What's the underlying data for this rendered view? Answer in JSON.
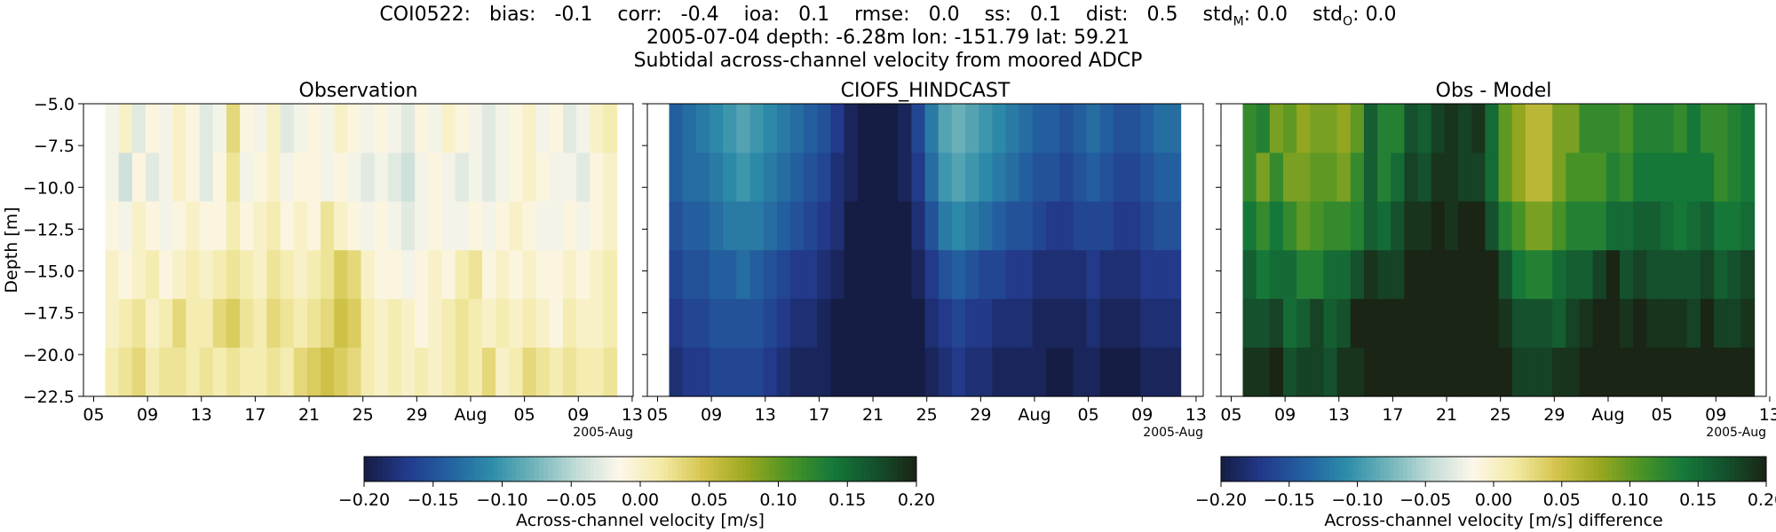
{
  "header": {
    "station": "COI0522:",
    "stats": [
      {
        "label": "bias:",
        "value": "-0.1"
      },
      {
        "label": "corr:",
        "value": "-0.4"
      },
      {
        "label": "ioa:",
        "value": "0.1"
      },
      {
        "label": "rmse:",
        "value": "0.0"
      },
      {
        "label": "ss:",
        "value": "0.1"
      },
      {
        "label": "dist:",
        "value": "0.5"
      }
    ],
    "std_model": {
      "label": "std",
      "sub": "M",
      "value": "0.0"
    },
    "std_obs": {
      "label": "std",
      "sub": "O",
      "value": "0.0"
    },
    "line2": "2005-07-04 depth: -6.28m lon: -151.79 lat: 59.21",
    "line3": "Subtidal across-channel velocity from moored ADCP"
  },
  "chart_data": [
    {
      "type": "heatmap",
      "title": "Observation",
      "ylabel": "Depth [m]",
      "x_tick_labels": [
        "05",
        "09",
        "13",
        "17",
        "21",
        "25",
        "29",
        "Aug",
        "05",
        "09",
        "13"
      ],
      "x_offset_label": "2005-Aug",
      "y_tick_labels": [
        "-5.0",
        "-7.5",
        "-10.0",
        "-12.5",
        "-15.0",
        "-17.5",
        "-20.0",
        "-22.5"
      ],
      "ylim": [
        -22.5,
        -5.0
      ],
      "depth_bins": [
        -6.28,
        -9.28,
        -12.28,
        -15.28,
        -18.28,
        -21.28
      ],
      "time_start": "2005-07-06",
      "n_days": 38,
      "value_range": [
        -0.2,
        0.2
      ],
      "colormap": "curl",
      "values_by_depth": [
        [
          -0.02,
          0.0,
          -0.03,
          -0.01,
          -0.02,
          0.0,
          -0.01,
          -0.03,
          -0.02,
          0.03,
          -0.01,
          -0.02,
          0.0,
          -0.03,
          -0.02,
          -0.01,
          -0.02,
          0.0,
          -0.01,
          -0.02,
          -0.01,
          -0.02,
          -0.03,
          -0.01,
          -0.02,
          0.0,
          -0.01,
          -0.02,
          -0.03,
          -0.02,
          -0.01,
          0.0,
          -0.02,
          -0.01,
          -0.03,
          -0.02,
          0.0,
          0.01
        ],
        [
          -0.02,
          -0.04,
          -0.01,
          -0.03,
          -0.02,
          0.0,
          -0.01,
          -0.03,
          -0.01,
          0.02,
          -0.02,
          -0.01,
          0.0,
          -0.02,
          -0.01,
          -0.01,
          -0.02,
          -0.01,
          -0.02,
          -0.03,
          -0.02,
          -0.03,
          -0.04,
          -0.02,
          -0.01,
          -0.02,
          -0.03,
          -0.02,
          -0.03,
          -0.02,
          -0.01,
          0.0,
          -0.01,
          -0.02,
          -0.02,
          -0.03,
          -0.01,
          0.0
        ],
        [
          -0.01,
          -0.02,
          0.0,
          -0.01,
          -0.02,
          -0.01,
          0.0,
          -0.01,
          -0.01,
          0.01,
          -0.01,
          0.0,
          0.01,
          -0.01,
          0.0,
          -0.01,
          0.02,
          0.0,
          -0.01,
          -0.02,
          -0.01,
          -0.02,
          -0.03,
          -0.02,
          -0.01,
          -0.02,
          -0.02,
          -0.01,
          -0.02,
          -0.01,
          0.0,
          -0.01,
          -0.02,
          -0.02,
          -0.01,
          -0.02,
          -0.01,
          0.0
        ],
        [
          0.0,
          -0.01,
          0.0,
          0.01,
          -0.01,
          0.0,
          0.01,
          0.0,
          0.01,
          0.02,
          0.01,
          0.0,
          0.02,
          0.01,
          0.0,
          0.01,
          0.02,
          0.04,
          0.03,
          0.0,
          -0.01,
          -0.01,
          -0.02,
          -0.01,
          0.0,
          -0.01,
          0.01,
          0.02,
          -0.01,
          0.0,
          -0.01,
          0.0,
          -0.01,
          -0.01,
          0.0,
          -0.01,
          0.0,
          0.01
        ],
        [
          0.0,
          0.01,
          0.02,
          0.0,
          0.01,
          0.03,
          0.01,
          0.01,
          0.03,
          0.04,
          0.02,
          0.01,
          0.03,
          0.02,
          0.01,
          0.02,
          0.03,
          0.05,
          0.04,
          0.01,
          0.0,
          0.01,
          0.0,
          -0.01,
          0.0,
          0.01,
          0.02,
          0.01,
          0.0,
          0.01,
          0.0,
          0.01,
          0.0,
          -0.01,
          0.01,
          0.0,
          0.0,
          0.01
        ],
        [
          0.01,
          0.02,
          0.03,
          0.01,
          0.02,
          0.02,
          0.01,
          0.02,
          0.01,
          0.02,
          0.01,
          0.01,
          0.02,
          0.01,
          0.03,
          0.04,
          0.05,
          0.04,
          0.03,
          0.01,
          0.0,
          0.01,
          0.0,
          0.01,
          0.0,
          0.01,
          0.02,
          0.01,
          0.03,
          0.0,
          0.01,
          0.03,
          0.02,
          0.01,
          0.02,
          0.01,
          0.01,
          0.02
        ]
      ]
    },
    {
      "type": "heatmap",
      "title": "CIOFS_HINDCAST",
      "x_tick_labels": [
        "05",
        "09",
        "13",
        "17",
        "21",
        "25",
        "29",
        "Aug",
        "05",
        "09",
        "13"
      ],
      "x_offset_label": "2005-Aug",
      "ylim": [
        -22.5,
        -5.0
      ],
      "depth_bins": [
        -6.28,
        -9.28,
        -12.28,
        -15.28,
        -18.28,
        -21.28
      ],
      "time_start": "2005-07-06",
      "n_days": 38,
      "value_range": [
        -0.2,
        0.2
      ],
      "colormap": "curl",
      "values_by_depth": [
        [
          -0.14,
          -0.13,
          -0.12,
          -0.11,
          -0.1,
          -0.09,
          -0.1,
          -0.11,
          -0.12,
          -0.13,
          -0.14,
          -0.15,
          -0.17,
          -0.19,
          -0.2,
          -0.2,
          -0.2,
          -0.19,
          -0.16,
          -0.12,
          -0.09,
          -0.08,
          -0.09,
          -0.1,
          -0.11,
          -0.12,
          -0.13,
          -0.14,
          -0.14,
          -0.15,
          -0.14,
          -0.13,
          -0.14,
          -0.15,
          -0.15,
          -0.14,
          -0.13,
          -0.13
        ],
        [
          -0.14,
          -0.13,
          -0.13,
          -0.12,
          -0.11,
          -0.1,
          -0.11,
          -0.12,
          -0.13,
          -0.14,
          -0.15,
          -0.16,
          -0.18,
          -0.19,
          -0.2,
          -0.2,
          -0.2,
          -0.19,
          -0.17,
          -0.13,
          -0.1,
          -0.09,
          -0.1,
          -0.11,
          -0.12,
          -0.13,
          -0.14,
          -0.15,
          -0.15,
          -0.16,
          -0.15,
          -0.14,
          -0.15,
          -0.16,
          -0.16,
          -0.15,
          -0.14,
          -0.14
        ],
        [
          -0.15,
          -0.14,
          -0.14,
          -0.13,
          -0.12,
          -0.12,
          -0.12,
          -0.13,
          -0.14,
          -0.15,
          -0.16,
          -0.17,
          -0.18,
          -0.2,
          -0.2,
          -0.2,
          -0.2,
          -0.2,
          -0.18,
          -0.15,
          -0.12,
          -0.11,
          -0.12,
          -0.13,
          -0.14,
          -0.15,
          -0.15,
          -0.16,
          -0.17,
          -0.17,
          -0.16,
          -0.16,
          -0.16,
          -0.17,
          -0.17,
          -0.16,
          -0.15,
          -0.15
        ],
        [
          -0.16,
          -0.15,
          -0.15,
          -0.14,
          -0.14,
          -0.13,
          -0.14,
          -0.15,
          -0.16,
          -0.17,
          -0.17,
          -0.18,
          -0.19,
          -0.2,
          -0.2,
          -0.2,
          -0.2,
          -0.2,
          -0.19,
          -0.17,
          -0.15,
          -0.14,
          -0.15,
          -0.16,
          -0.16,
          -0.17,
          -0.17,
          -0.18,
          -0.18,
          -0.18,
          -0.18,
          -0.17,
          -0.18,
          -0.18,
          -0.18,
          -0.17,
          -0.17,
          -0.17
        ],
        [
          -0.17,
          -0.16,
          -0.16,
          -0.15,
          -0.15,
          -0.15,
          -0.15,
          -0.16,
          -0.17,
          -0.18,
          -0.18,
          -0.19,
          -0.2,
          -0.2,
          -0.2,
          -0.2,
          -0.2,
          -0.2,
          -0.2,
          -0.18,
          -0.17,
          -0.16,
          -0.17,
          -0.17,
          -0.18,
          -0.18,
          -0.18,
          -0.19,
          -0.19,
          -0.19,
          -0.19,
          -0.18,
          -0.19,
          -0.19,
          -0.19,
          -0.18,
          -0.18,
          -0.18
        ],
        [
          -0.18,
          -0.17,
          -0.17,
          -0.16,
          -0.16,
          -0.16,
          -0.16,
          -0.17,
          -0.18,
          -0.19,
          -0.19,
          -0.19,
          -0.2,
          -0.2,
          -0.2,
          -0.2,
          -0.2,
          -0.2,
          -0.2,
          -0.19,
          -0.18,
          -0.17,
          -0.18,
          -0.18,
          -0.19,
          -0.19,
          -0.19,
          -0.19,
          -0.2,
          -0.2,
          -0.19,
          -0.19,
          -0.2,
          -0.2,
          -0.2,
          -0.19,
          -0.19,
          -0.19
        ]
      ]
    },
    {
      "type": "heatmap",
      "title": "Obs - Model",
      "x_tick_labels": [
        "05",
        "09",
        "13",
        "17",
        "21",
        "25",
        "29",
        "Aug",
        "05",
        "09",
        "13"
      ],
      "x_offset_label": "2005-Aug",
      "ylim": [
        -22.5,
        -5.0
      ],
      "depth_bins": [
        -6.28,
        -9.28,
        -12.28,
        -15.28,
        -18.28,
        -21.28
      ],
      "time_start": "2005-07-06",
      "n_days": 38,
      "value_range": [
        -0.2,
        0.2
      ],
      "colormap": "curl",
      "values_by_depth": [
        [
          0.12,
          0.13,
          0.09,
          0.1,
          0.08,
          0.09,
          0.09,
          0.08,
          0.1,
          0.16,
          0.13,
          0.13,
          0.17,
          0.16,
          0.18,
          0.19,
          0.18,
          0.19,
          0.15,
          0.1,
          0.08,
          0.06,
          0.06,
          0.09,
          0.09,
          0.12,
          0.12,
          0.12,
          0.11,
          0.13,
          0.13,
          0.13,
          0.12,
          0.14,
          0.12,
          0.12,
          0.13,
          0.14
        ],
        [
          0.12,
          0.09,
          0.12,
          0.09,
          0.09,
          0.1,
          0.1,
          0.09,
          0.12,
          0.16,
          0.13,
          0.15,
          0.18,
          0.17,
          0.19,
          0.19,
          0.18,
          0.18,
          0.15,
          0.1,
          0.08,
          0.06,
          0.06,
          0.09,
          0.11,
          0.11,
          0.11,
          0.13,
          0.12,
          0.14,
          0.14,
          0.14,
          0.14,
          0.14,
          0.14,
          0.12,
          0.13,
          0.14
        ],
        [
          0.14,
          0.12,
          0.14,
          0.12,
          0.1,
          0.11,
          0.12,
          0.12,
          0.13,
          0.16,
          0.15,
          0.17,
          0.19,
          0.19,
          0.2,
          0.19,
          0.22,
          0.2,
          0.17,
          0.13,
          0.11,
          0.09,
          0.09,
          0.11,
          0.13,
          0.13,
          0.13,
          0.15,
          0.15,
          0.16,
          0.16,
          0.15,
          0.14,
          0.15,
          0.16,
          0.14,
          0.14,
          0.15
        ],
        [
          0.16,
          0.14,
          0.15,
          0.15,
          0.13,
          0.13,
          0.15,
          0.15,
          0.17,
          0.19,
          0.18,
          0.18,
          0.21,
          0.21,
          0.2,
          0.21,
          0.22,
          0.24,
          0.22,
          0.17,
          0.14,
          0.13,
          0.13,
          0.15,
          0.16,
          0.16,
          0.18,
          0.2,
          0.17,
          0.18,
          0.17,
          0.17,
          0.17,
          0.17,
          0.18,
          0.16,
          0.17,
          0.18
        ],
        [
          0.17,
          0.17,
          0.18,
          0.15,
          0.16,
          0.18,
          0.16,
          0.17,
          0.2,
          0.22,
          0.2,
          0.2,
          0.23,
          0.22,
          0.21,
          0.22,
          0.23,
          0.25,
          0.24,
          0.19,
          0.17,
          0.17,
          0.17,
          0.16,
          0.18,
          0.19,
          0.2,
          0.2,
          0.19,
          0.2,
          0.19,
          0.19,
          0.19,
          0.18,
          0.2,
          0.18,
          0.18,
          0.19
        ],
        [
          0.19,
          0.19,
          0.2,
          0.17,
          0.18,
          0.18,
          0.17,
          0.19,
          0.19,
          0.21,
          0.2,
          0.2,
          0.22,
          0.21,
          0.23,
          0.24,
          0.25,
          0.24,
          0.23,
          0.2,
          0.18,
          0.18,
          0.18,
          0.19,
          0.19,
          0.2,
          0.21,
          0.2,
          0.23,
          0.2,
          0.2,
          0.22,
          0.22,
          0.21,
          0.22,
          0.2,
          0.2,
          0.21
        ]
      ]
    }
  ],
  "colorbars": [
    {
      "tick_labels": [
        "−0.20",
        "−0.15",
        "−0.10",
        "−0.05",
        "0.00",
        "0.05",
        "0.10",
        "0.15",
        "0.20"
      ],
      "range": [
        -0.2,
        0.2
      ],
      "label": "Across-channel velocity [m/s]"
    },
    {
      "tick_labels": [
        "−0.20",
        "−0.15",
        "−0.10",
        "−0.05",
        "0.00",
        "0.05",
        "0.10",
        "0.15",
        "0.20"
      ],
      "range": [
        -0.2,
        0.2
      ],
      "label": "Across-channel velocity [m/s] difference"
    }
  ],
  "colormap_stops": [
    "#151d44",
    "#233a8c",
    "#2361a0",
    "#2d8ca9",
    "#71b4ba",
    "#c2dcd6",
    "#fdf7eb",
    "#f3eaa5",
    "#d4c44c",
    "#9ba820",
    "#4b9424",
    "#157a3a",
    "#14522d",
    "#1a2516"
  ]
}
